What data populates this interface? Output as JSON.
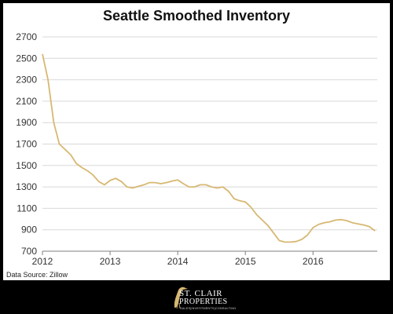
{
  "chart_data": {
    "type": "line",
    "title": "Seattle Smoothed Inventory",
    "xlabel": "",
    "ylabel": "",
    "source": "Data Source: Zillow",
    "ylim": [
      700,
      2700
    ],
    "yticks": [
      700,
      900,
      1100,
      1300,
      1500,
      1700,
      1900,
      2100,
      2300,
      2500,
      2700
    ],
    "xlim": [
      2012,
      2016.95
    ],
    "xticks": [
      2012,
      2013,
      2014,
      2015,
      2016
    ],
    "grid": true,
    "legend": "none",
    "colors": {
      "line": "#d7b872",
      "grid": "#d9d9d9",
      "axis": "#7f7f7f"
    },
    "series": [
      {
        "values": [
          [
            2012.0,
            2540
          ],
          [
            2012.083,
            2300
          ],
          [
            2012.167,
            1900
          ],
          [
            2012.25,
            1700
          ],
          [
            2012.333,
            1650
          ],
          [
            2012.417,
            1600
          ],
          [
            2012.5,
            1520
          ],
          [
            2012.583,
            1480
          ],
          [
            2012.667,
            1450
          ],
          [
            2012.75,
            1410
          ],
          [
            2012.833,
            1350
          ],
          [
            2012.917,
            1320
          ],
          [
            2013.0,
            1360
          ],
          [
            2013.083,
            1380
          ],
          [
            2013.167,
            1350
          ],
          [
            2013.25,
            1300
          ],
          [
            2013.333,
            1290
          ],
          [
            2013.417,
            1305
          ],
          [
            2013.5,
            1320
          ],
          [
            2013.583,
            1340
          ],
          [
            2013.667,
            1340
          ],
          [
            2013.75,
            1330
          ],
          [
            2013.833,
            1340
          ],
          [
            2013.917,
            1355
          ],
          [
            2014.0,
            1365
          ],
          [
            2014.083,
            1330
          ],
          [
            2014.167,
            1300
          ],
          [
            2014.25,
            1300
          ],
          [
            2014.333,
            1320
          ],
          [
            2014.417,
            1320
          ],
          [
            2014.5,
            1300
          ],
          [
            2014.583,
            1290
          ],
          [
            2014.667,
            1300
          ],
          [
            2014.75,
            1260
          ],
          [
            2014.833,
            1190
          ],
          [
            2014.917,
            1170
          ],
          [
            2015.0,
            1160
          ],
          [
            2015.083,
            1110
          ],
          [
            2015.167,
            1040
          ],
          [
            2015.25,
            990
          ],
          [
            2015.333,
            940
          ],
          [
            2015.417,
            870
          ],
          [
            2015.5,
            800
          ],
          [
            2015.583,
            785
          ],
          [
            2015.667,
            785
          ],
          [
            2015.75,
            790
          ],
          [
            2015.833,
            810
          ],
          [
            2015.917,
            850
          ],
          [
            2016.0,
            920
          ],
          [
            2016.083,
            950
          ],
          [
            2016.167,
            965
          ],
          [
            2016.25,
            975
          ],
          [
            2016.333,
            990
          ],
          [
            2016.417,
            995
          ],
          [
            2016.5,
            985
          ],
          [
            2016.583,
            965
          ],
          [
            2016.667,
            955
          ],
          [
            2016.75,
            945
          ],
          [
            2016.833,
            930
          ],
          [
            2016.917,
            890
          ]
        ]
      }
    ]
  },
  "branding": {
    "line1": "ST. CLAIR",
    "line2": "PROPERTIES",
    "line3": "SALES|INVESTMENTS|CONSULTING"
  }
}
